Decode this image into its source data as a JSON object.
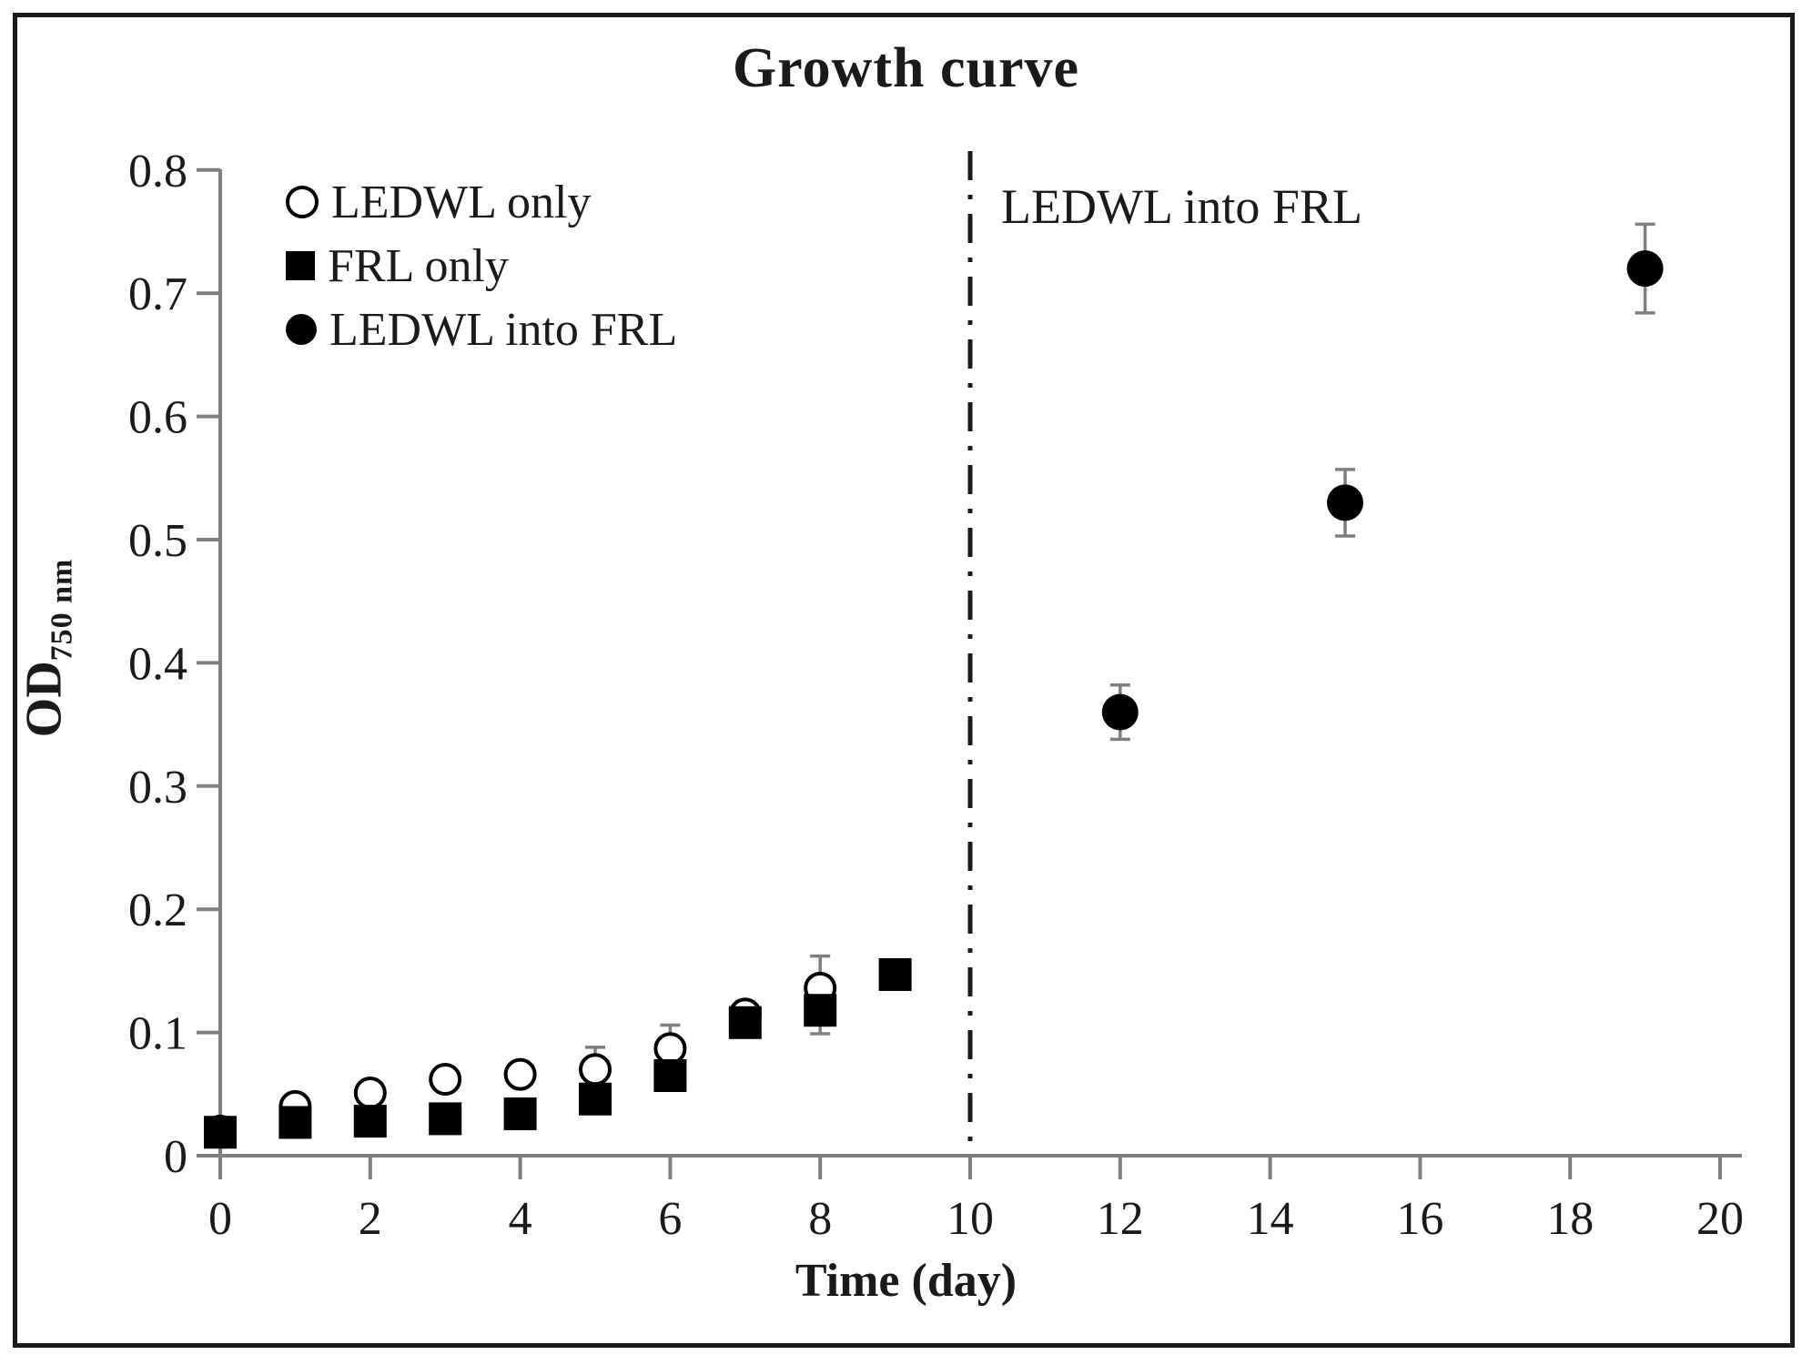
{
  "figure": {
    "title": "Growth curve",
    "xlabel": "Time (day)",
    "ylabel_main": "OD",
    "ylabel_sub": "750 nm",
    "annotation": "LEDWL into FRL"
  },
  "colors": {
    "marker": "#000000",
    "axis": "#808080",
    "error_bar": "#7f7f7f",
    "divider": "#1a1a1a",
    "text": "#1a1a1a"
  },
  "chart_data": {
    "type": "scatter",
    "title": "Growth curve",
    "xlabel": "Time (day)",
    "ylabel": "OD 750 nm",
    "xlim": [
      0,
      20
    ],
    "ylim": [
      0,
      0.8
    ],
    "grid": false,
    "legend_position": "top-left",
    "x_ticks": {
      "values": [
        0,
        2,
        4,
        6,
        8,
        10,
        12,
        14,
        16,
        18,
        20
      ],
      "labels": [
        "0",
        "2",
        "4",
        "6",
        "8",
        "10",
        "12",
        "14",
        "16",
        "18",
        "20"
      ]
    },
    "y_ticks": {
      "values": [
        0,
        0.1,
        0.2,
        0.3,
        0.4,
        0.5,
        0.6,
        0.7,
        0.8
      ],
      "labels": [
        "0",
        "0.1",
        "0.2",
        "0.3",
        "0.4",
        "0.5",
        "0.6",
        "0.7",
        "0.8"
      ]
    },
    "divider_line": {
      "x": 10,
      "style": "dash-dot",
      "label": "LEDWL into FRL"
    },
    "series": [
      {
        "name": "LEDWL only",
        "marker": "open-circle",
        "points": [
          {
            "x": 0,
            "y": 0.02,
            "err": 0
          },
          {
            "x": 1,
            "y": 0.04,
            "err": 0
          },
          {
            "x": 2,
            "y": 0.051,
            "err": 0
          },
          {
            "x": 3,
            "y": 0.062,
            "err": 0
          },
          {
            "x": 4,
            "y": 0.066,
            "err": 0
          },
          {
            "x": 5,
            "y": 0.07,
            "err": 0.018
          },
          {
            "x": 6,
            "y": 0.087,
            "err": 0.019
          },
          {
            "x": 7,
            "y": 0.115,
            "err": 0.01
          },
          {
            "x": 8,
            "y": 0.136,
            "err": 0.026
          }
        ]
      },
      {
        "name": "FRL only",
        "marker": "filled-square",
        "points": [
          {
            "x": 0,
            "y": 0.019,
            "err": 0
          },
          {
            "x": 1,
            "y": 0.027,
            "err": 0
          },
          {
            "x": 2,
            "y": 0.028,
            "err": 0
          },
          {
            "x": 3,
            "y": 0.03,
            "err": 0
          },
          {
            "x": 4,
            "y": 0.034,
            "err": 0
          },
          {
            "x": 5,
            "y": 0.046,
            "err": 0
          },
          {
            "x": 6,
            "y": 0.065,
            "err": 0
          },
          {
            "x": 7,
            "y": 0.108,
            "err": 0
          },
          {
            "x": 8,
            "y": 0.118,
            "err": 0.019
          },
          {
            "x": 9,
            "y": 0.147,
            "err": 0
          }
        ]
      },
      {
        "name": "LEDWL into FRL",
        "marker": "filled-circle",
        "points": [
          {
            "x": 12,
            "y": 0.36,
            "err": 0.022
          },
          {
            "x": 15,
            "y": 0.53,
            "err": 0.027
          },
          {
            "x": 19,
            "y": 0.72,
            "err": 0.036
          }
        ]
      }
    ]
  }
}
